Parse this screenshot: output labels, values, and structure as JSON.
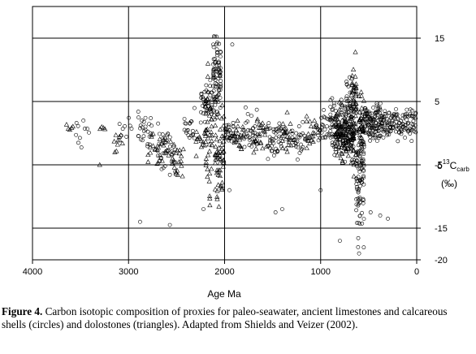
{
  "chart_data": {
    "type": "scatter",
    "xlabel": "Age Ma",
    "ylabel_parts": {
      "delta": "δ",
      "sup": "13",
      "base": "C",
      "sub": "carb",
      "unit": "(‰)"
    },
    "xlim": [
      4000,
      0
    ],
    "ylim": [
      -20,
      20
    ],
    "x_ticks": [
      4000,
      3000,
      2000,
      1000,
      0
    ],
    "y_ticks": [
      15,
      5,
      -5,
      -15,
      -20
    ],
    "grid": true,
    "markers": {
      "circle": "limestones and calcareous shells",
      "triangle": "dolostones"
    },
    "clusters": [
      {
        "marker": "triangle",
        "age_range": [
          3650,
          3550
        ],
        "d13c_range": [
          0,
          2
        ],
        "n": 5
      },
      {
        "marker": "circle",
        "age_range": [
          3550,
          3400
        ],
        "d13c_range": [
          -3,
          3
        ],
        "n": 10
      },
      {
        "marker": "triangle",
        "age_range": [
          3300,
          3200
        ],
        "d13c_range": [
          0,
          2
        ],
        "n": 4
      },
      {
        "marker": "triangle",
        "age_range": [
          3150,
          3050
        ],
        "d13c_range": [
          -5,
          3
        ],
        "n": 10
      },
      {
        "marker": "circle",
        "age_range": [
          3100,
          2950
        ],
        "d13c_range": [
          -2,
          3
        ],
        "n": 8
      },
      {
        "marker": "circle",
        "age_range": [
          2900,
          2750
        ],
        "d13c_range": [
          -4,
          4
        ],
        "n": 25
      },
      {
        "marker": "triangle",
        "age_range": [
          2800,
          2550
        ],
        "d13c_range": [
          -6,
          2
        ],
        "n": 25
      },
      {
        "marker": "circle",
        "age_range": [
          2700,
          2500
        ],
        "d13c_range": [
          -8,
          3
        ],
        "n": 40
      },
      {
        "marker": "triangle",
        "age_range": [
          2550,
          2420
        ],
        "d13c_range": [
          -10,
          2
        ],
        "n": 20
      },
      {
        "marker": "circle",
        "age_range": [
          2420,
          2300
        ],
        "d13c_range": [
          -3,
          5
        ],
        "n": 20
      },
      {
        "marker": "triangle",
        "age_range": [
          2300,
          2180
        ],
        "d13c_range": [
          -5,
          3
        ],
        "n": 15
      },
      {
        "marker": "circle",
        "age_range": [
          2250,
          2100
        ],
        "d13c_range": [
          0,
          10
        ],
        "n": 40
      },
      {
        "marker": "triangle",
        "age_range": [
          2200,
          2120
        ],
        "d13c_range": [
          -15,
          14
        ],
        "n": 45
      },
      {
        "marker": "circle",
        "age_range": [
          2120,
          2030
        ],
        "d13c_range": [
          0,
          17
        ],
        "n": 80
      },
      {
        "marker": "triangle",
        "age_range": [
          2100,
          2000
        ],
        "d13c_range": [
          -15,
          11
        ],
        "n": 60
      },
      {
        "marker": "circle",
        "age_range": [
          2000,
          1900
        ],
        "d13c_range": [
          -3,
          3
        ],
        "n": 30
      },
      {
        "marker": "triangle",
        "age_range": [
          1900,
          1800
        ],
        "d13c_range": [
          -4,
          3
        ],
        "n": 25
      },
      {
        "marker": "circle",
        "age_range": [
          1800,
          1650
        ],
        "d13c_range": [
          -4,
          5
        ],
        "n": 30
      },
      {
        "marker": "triangle",
        "age_range": [
          1700,
          1550
        ],
        "d13c_range": [
          -5,
          4
        ],
        "n": 30
      },
      {
        "marker": "circle",
        "age_range": [
          1550,
          1400
        ],
        "d13c_range": [
          -6,
          4
        ],
        "n": 40
      },
      {
        "marker": "triangle",
        "age_range": [
          1400,
          1300
        ],
        "d13c_range": [
          -4,
          4
        ],
        "n": 25
      },
      {
        "marker": "circle",
        "age_range": [
          1300,
          1150
        ],
        "d13c_range": [
          -5,
          3
        ],
        "n": 30
      },
      {
        "marker": "triangle",
        "age_range": [
          1150,
          1050
        ],
        "d13c_range": [
          -3,
          4
        ],
        "n": 20
      },
      {
        "marker": "circle",
        "age_range": [
          1050,
          900
        ],
        "d13c_range": [
          -3,
          4
        ],
        "n": 30
      },
      {
        "marker": "circle",
        "age_range": [
          900,
          750
        ],
        "d13c_range": [
          -5,
          7
        ],
        "n": 80
      },
      {
        "marker": "triangle",
        "age_range": [
          850,
          700
        ],
        "d13c_range": [
          -6,
          7
        ],
        "n": 80
      },
      {
        "marker": "circle",
        "age_range": [
          750,
          650
        ],
        "d13c_range": [
          -7,
          10
        ],
        "n": 90
      },
      {
        "marker": "triangle",
        "age_range": [
          680,
          620
        ],
        "d13c_range": [
          -10,
          16
        ],
        "n": 70
      },
      {
        "marker": "circle",
        "age_range": [
          630,
          540
        ],
        "d13c_range": [
          -19,
          5
        ],
        "n": 90
      },
      {
        "marker": "triangle",
        "age_range": [
          600,
          540
        ],
        "d13c_range": [
          -6,
          8
        ],
        "n": 40
      },
      {
        "marker": "circle",
        "age_range": [
          540,
          350
        ],
        "d13c_range": [
          -3,
          6
        ],
        "n": 120
      },
      {
        "marker": "circle",
        "age_range": [
          350,
          0
        ],
        "d13c_range": [
          -2,
          5
        ],
        "n": 120
      }
    ],
    "outliers": [
      {
        "marker": "circle",
        "age": 2880,
        "d13c": -14
      },
      {
        "marker": "circle",
        "age": 2570,
        "d13c": -14.5
      },
      {
        "marker": "circle",
        "age": 1470,
        "d13c": -12.5
      },
      {
        "marker": "circle",
        "age": 1400,
        "d13c": -12
      },
      {
        "marker": "circle",
        "age": 1920,
        "d13c": 14
      },
      {
        "marker": "circle",
        "age": 1950,
        "d13c": -9
      },
      {
        "marker": "circle",
        "age": 800,
        "d13c": -17
      },
      {
        "marker": "circle",
        "age": 610,
        "d13c": -18
      },
      {
        "marker": "circle",
        "age": 600,
        "d13c": -19
      },
      {
        "marker": "circle",
        "age": 380,
        "d13c": -13
      },
      {
        "marker": "circle",
        "age": 300,
        "d13c": -13.5
      },
      {
        "marker": "circle",
        "age": 480,
        "d13c": -12.5
      },
      {
        "marker": "circle",
        "age": 1000,
        "d13c": -9
      },
      {
        "marker": "circle",
        "age": 2220,
        "d13c": -12
      },
      {
        "marker": "triangle",
        "age": 3300,
        "d13c": -5
      }
    ]
  },
  "caption": {
    "label": "Figure 4.",
    "text": " Carbon isotopic composition of proxies for paleo-seawater, ancient limestones and calcareous shells (circles) and dolostones (triangles). Adapted from Shields and Veizer (2002)."
  }
}
